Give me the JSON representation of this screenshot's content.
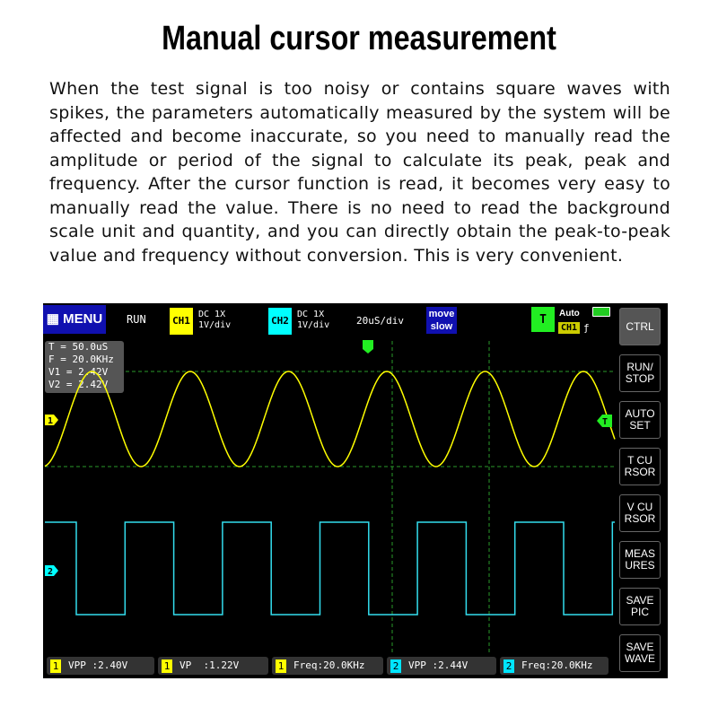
{
  "title": "Manual cursor measurement",
  "description": "When the test signal is too noisy or contains square waves with spikes, the parameters automatically measured by the system will be affected and become inaccurate, so you need to manually read the amplitude or period of the signal to calculate its peak, peak and frequency. After the cursor function is read, it becomes very easy to manually read the value. There is no need to read the background scale unit and quantity, and you can directly obtain the peak-to-peak value and frequency without conversion. This is very convenient.",
  "scope": {
    "menu": "MENU",
    "run_state": "RUN",
    "ch1": {
      "label": "CH1",
      "coupling": "DC  1X",
      "scale": "1V/div",
      "color": "#ffff00"
    },
    "ch2": {
      "label": "CH2",
      "coupling": "DC  1X",
      "scale": "1V/div",
      "color": "#00e5ff"
    },
    "timebase": "20uS/div",
    "move": "move",
    "speed": "slow",
    "trigger": {
      "label": "T",
      "mode": "Auto",
      "source": "CH1",
      "edge": "ƒ"
    },
    "cursor_info": [
      "T = 50.0uS",
      "F = 20.0KHz",
      "V1 = 2.42V",
      "V2 = 2.42V"
    ],
    "markers": {
      "ch1": "1",
      "ch2": "2",
      "trig": "T"
    },
    "buttons": [
      "CTRL",
      "RUN/ STOP",
      "AUTO SET",
      "T CU RSOR",
      "V CU RSOR",
      "MEAS URES",
      "SAVE PIC",
      "SAVE WAVE"
    ],
    "measurements": [
      {
        "ch": "1",
        "text": "VPP :2.40V"
      },
      {
        "ch": "1",
        "text": "VP  :1.22V"
      },
      {
        "ch": "1",
        "text": "Freq:20.0KHz"
      },
      {
        "ch": "2",
        "text": "VPP :2.44V"
      },
      {
        "ch": "2",
        "text": "Freq:20.0KHz"
      }
    ]
  }
}
